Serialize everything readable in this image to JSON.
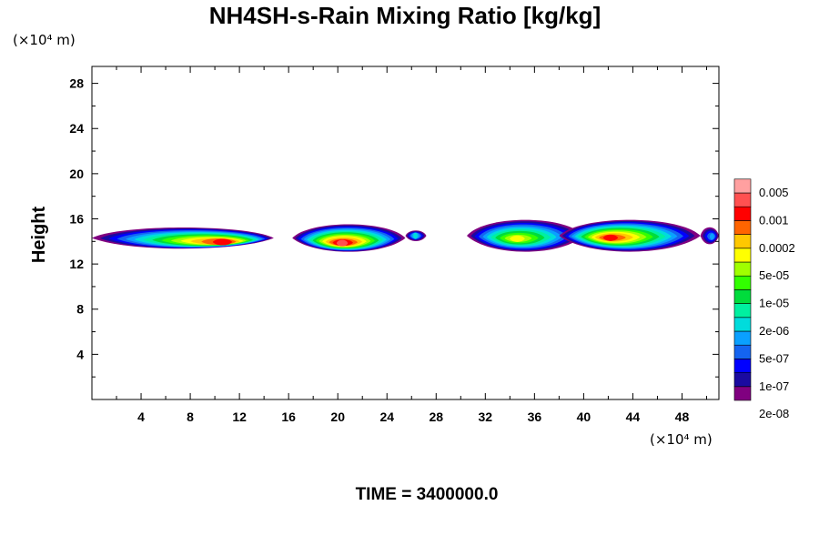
{
  "chart_data": {
    "type": "heatmap",
    "title": "NH4SH-s-Rain Mixing Ratio [kg/kg]",
    "ylabel": "Height",
    "x_unit": "(×10⁴ m)",
    "y_unit": "(×10⁴ m)",
    "xlim": [
      0,
      51
    ],
    "ylim": [
      0,
      29.5
    ],
    "x_ticks": [
      "4",
      "8",
      "12",
      "16",
      "20",
      "24",
      "28",
      "32",
      "36",
      "40",
      "44",
      "48"
    ],
    "y_ticks": [
      "4",
      "8",
      "12",
      "16",
      "20",
      "24",
      "28"
    ],
    "x_tick_values": [
      4,
      8,
      12,
      16,
      20,
      24,
      28,
      32,
      36,
      40,
      44,
      48
    ],
    "y_tick_values": [
      4,
      8,
      12,
      16,
      20,
      24,
      28
    ],
    "colorbar": {
      "labels": [
        "0.005",
        "0.001",
        "0.0002",
        "5e-05",
        "1e-05",
        "2e-06",
        "5e-07",
        "1e-07",
        "2e-08"
      ],
      "colors": [
        "#800080",
        "#1a0aa0",
        "#0000ff",
        "#1464f0",
        "#0aa0ff",
        "#00dcdc",
        "#00f0a0",
        "#00dc3c",
        "#32ff00",
        "#a0ff00",
        "#ffff00",
        "#ffc800",
        "#ff6400",
        "#ff0000",
        "#ff5050",
        "#ffa0a0"
      ]
    },
    "clouds": [
      {
        "x0": 0.0,
        "x1": 14.8,
        "ybase": 13.3,
        "ytop": 15.3,
        "peak_x": 11.0,
        "peak_y": 13.9,
        "peak_level": 13
      },
      {
        "x0": 16.3,
        "x1": 25.5,
        "ybase": 13.0,
        "ytop": 15.6,
        "peak_x": 20.3,
        "peak_y": 13.8,
        "peak_level": 14
      },
      {
        "x0": 25.5,
        "x1": 27.2,
        "ybase": 14.0,
        "ytop": 15.0,
        "peak_x": 26.3,
        "peak_y": 14.5,
        "peak_level": 5
      },
      {
        "x0": 30.5,
        "x1": 40.0,
        "ybase": 13.0,
        "ytop": 16.0,
        "peak_x": 34.5,
        "peak_y": 14.2,
        "peak_level": 10
      },
      {
        "x0": 38.0,
        "x1": 49.5,
        "ybase": 13.0,
        "ytop": 16.0,
        "peak_x": 42.0,
        "peak_y": 14.3,
        "peak_level": 13
      },
      {
        "x0": 49.5,
        "x1": 51.0,
        "ybase": 13.7,
        "ytop": 15.3,
        "peak_x": 50.5,
        "peak_y": 14.4,
        "peak_level": 4
      }
    ]
  },
  "time_label": "TIME = 3400000.0"
}
